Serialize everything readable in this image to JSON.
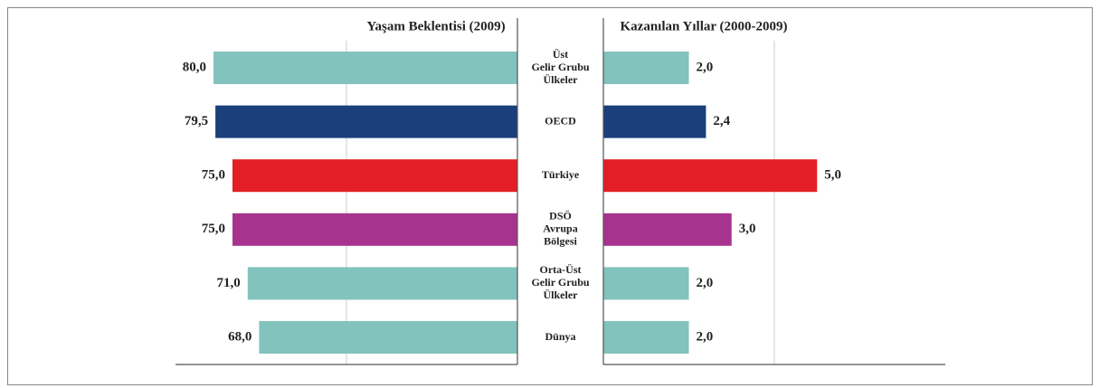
{
  "chart_data": [
    {
      "type": "barh",
      "direction": "left",
      "title": "Yaşam Beklentisi (2009)",
      "categories": [
        [
          "Üst",
          "Gelir Grubu",
          "Ülkeler"
        ],
        [
          "OECD"
        ],
        [
          "Türkiye"
        ],
        [
          "DSÖ",
          "Avrupa",
          "Bölgesi"
        ],
        [
          "Orta-Üst",
          "Gelir Grubu",
          "Ülkeler"
        ],
        [
          "Dünya"
        ]
      ],
      "values": [
        80.0,
        79.5,
        75.0,
        75.0,
        71.0,
        68.0
      ],
      "value_labels": [
        "80,0",
        "79,5",
        "75,0",
        "75,0",
        "71,0",
        "68,0"
      ],
      "colors": [
        "#82c3bd",
        "#1b3f7a",
        "#e31e24",
        "#a7338e",
        "#82c3bd",
        "#82c3bd"
      ],
      "xlim": [
        0,
        90
      ],
      "xticks": [
        45
      ],
      "grid": true
    },
    {
      "type": "barh",
      "direction": "right",
      "title": "Kazanılan Yıllar (2000-2009)",
      "values": [
        2.0,
        2.4,
        5.0,
        3.0,
        2.0,
        2.0
      ],
      "value_labels": [
        "2,0",
        "2,4",
        "5,0",
        "3,0",
        "2,0",
        "2,0"
      ],
      "colors": [
        "#82c3bd",
        "#1b3f7a",
        "#e31e24",
        "#a7338e",
        "#82c3bd",
        "#82c3bd"
      ],
      "xlim": [
        0,
        8
      ],
      "xticks": [
        4
      ],
      "grid": true
    }
  ]
}
